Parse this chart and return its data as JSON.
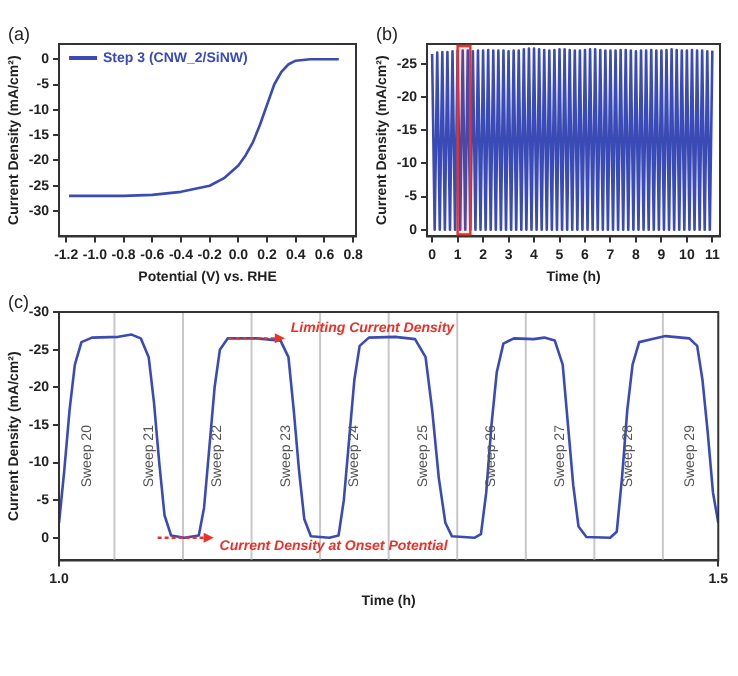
{
  "chart_data": [
    {
      "type": "line",
      "title": "(a)",
      "xlabel": "Potential (V) vs. RHE",
      "ylabel": "Current Density (mA/cm²)",
      "series": [
        {
          "name": "Step 3 (CNW_2/SiNW)",
          "color": "#3a4bb5",
          "x": [
            -1.18,
            -1.0,
            -0.8,
            -0.6,
            -0.4,
            -0.2,
            -0.1,
            0,
            0.05,
            0.1,
            0.15,
            0.2,
            0.25,
            0.3,
            0.35,
            0.4,
            0.5,
            0.6,
            0.7
          ],
          "values": [
            -27,
            -27,
            -27,
            -26.8,
            -26.2,
            -25,
            -23.5,
            -21,
            -19,
            -16.5,
            -13,
            -9,
            -5,
            -2.5,
            -1,
            -0.3,
            0,
            0,
            0
          ]
        }
      ],
      "xlim": [
        -1.25,
        0.82
      ],
      "xticks": [
        -1.2,
        {
          "value": -1,
          "label": "-1.0"
        },
        -0.8,
        -0.6,
        -0.4,
        -0.2,
        {
          "value": 0,
          "label": "0.0"
        },
        0.2,
        0.4,
        0.6,
        0.8
      ],
      "ylim": [
        -35,
        3
      ],
      "yticks": [
        0,
        -5,
        -10,
        -15,
        -20,
        -25,
        -30
      ],
      "legend": "top left",
      "marker": "none",
      "grid": false
    },
    {
      "type": "line",
      "title": "(b)",
      "xlabel": "Time (h)",
      "ylabel": "Current Density (mA/cm²)",
      "series": [
        {
          "color": "#3a4bb5",
          "x": [
            0,
            0.1,
            0.2,
            0.3,
            0.4,
            0.5,
            0.6,
            0.7,
            0.8,
            0.9,
            1,
            1.1,
            1.2,
            1.3,
            1.4,
            1.5,
            1.6,
            1.7,
            1.8,
            1.9,
            2,
            2.1,
            2.2,
            2.3,
            2.4,
            2.5,
            2.6,
            2.7,
            2.8,
            2.9,
            3,
            3.1,
            3.2,
            3.3,
            3.4,
            3.5,
            3.6,
            3.7,
            3.8,
            3.9,
            4,
            4.1,
            4.2,
            4.3,
            4.4,
            4.5,
            4.6,
            4.7,
            4.8,
            4.9,
            5,
            5.1,
            5.2,
            5.3,
            5.4,
            5.5,
            5.6,
            5.7,
            5.8,
            5.9,
            6,
            6.1,
            6.2,
            6.3,
            6.4,
            6.5,
            6.6,
            6.7,
            6.8,
            6.9,
            7,
            7.1,
            7.2,
            7.3,
            7.4,
            7.5,
            7.6,
            7.7,
            7.8,
            7.9,
            8,
            8.1,
            8.2,
            8.3,
            8.4,
            8.5,
            8.6,
            8.7,
            8.8,
            8.9,
            9,
            9.1,
            9.2,
            9.3,
            9.4,
            9.5,
            9.6,
            9.7,
            9.8,
            9.9,
            10,
            10.1,
            10.2,
            10.3,
            10.4,
            10.5,
            10.6,
            10.7,
            10.8,
            10.9,
            11
          ],
          "values": [
            -26.5,
            0,
            -26.7,
            0,
            -26.8,
            0,
            -26.8,
            0,
            -26.9,
            0,
            -27,
            0,
            -27,
            0,
            -27,
            0,
            -26.9,
            0,
            -27,
            0,
            -27,
            0,
            -27.1,
            0,
            -27,
            0,
            -27,
            0,
            -27,
            0,
            -26.9,
            0,
            -27,
            0,
            -27,
            0,
            -27.2,
            0,
            -27.3,
            0,
            -27.3,
            0,
            -27.2,
            0,
            -27.1,
            0,
            -27,
            0,
            -27.1,
            0,
            -27.2,
            0,
            -27.2,
            0,
            -27.1,
            0,
            -27,
            0,
            -27,
            0,
            -27.1,
            0,
            -27.2,
            0,
            -27.2,
            0,
            -27.1,
            0,
            -27,
            0,
            -27,
            0,
            -27,
            0,
            -27.1,
            0,
            -27.1,
            0,
            -27,
            0,
            -26.9,
            0,
            -27,
            0,
            -27,
            0,
            -27.1,
            0,
            -27,
            0,
            -27,
            0,
            -27.1,
            0,
            -27.2,
            0,
            -27.1,
            0,
            -27,
            0,
            -27,
            0,
            -27.1,
            0,
            -27,
            0,
            -27,
            0,
            -26.9,
            0,
            -27
          ]
        }
      ],
      "xlim": [
        -0.2,
        11.3
      ],
      "xticks": [
        0,
        1,
        2,
        3,
        4,
        5,
        6,
        7,
        8,
        9,
        10,
        11
      ],
      "ylim": [
        1,
        -28
      ],
      "yticks": [
        0,
        -5,
        -10,
        -15,
        -20,
        -25
      ],
      "bands": [
        {
          "axis": "x",
          "from": 1.0,
          "to": 1.5,
          "color": "#e8322b"
        }
      ],
      "marker": "none",
      "grid": false
    },
    {
      "type": "line",
      "title": "(c)",
      "xlabel": "Time (h)",
      "ylabel": "Current Density (mA/cm²)",
      "series": [
        {
          "color": "#3a4bb5",
          "x": [
            1.0,
            1.004,
            1.008,
            1.012,
            1.017,
            1.025,
            1.045,
            1.055,
            1.062,
            1.068,
            1.072,
            1.076,
            1.08,
            1.085,
            1.095,
            1.106,
            1.11,
            1.114,
            1.118,
            1.122,
            1.128,
            1.15,
            1.168,
            1.174,
            1.178,
            1.182,
            1.186,
            1.191,
            1.205,
            1.212,
            1.216,
            1.22,
            1.224,
            1.228,
            1.235,
            1.255,
            1.27,
            1.278,
            1.283,
            1.288,
            1.293,
            1.298,
            1.315,
            1.32,
            1.324,
            1.328,
            1.332,
            1.337,
            1.345,
            1.36,
            1.368,
            1.376,
            1.382,
            1.386,
            1.39,
            1.394,
            1.4,
            1.418,
            1.423,
            1.427,
            1.431,
            1.435,
            1.44,
            1.45,
            1.46,
            1.478,
            1.484,
            1.488,
            1.492,
            1.496,
            1.5
          ],
          "values": [
            -2,
            -9,
            -17,
            -23,
            -26,
            -26.6,
            -26.7,
            -27,
            -26.5,
            -24,
            -18,
            -10,
            -3,
            -0.3,
            0,
            -0.3,
            -4,
            -12,
            -20,
            -25,
            -26.5,
            -26.5,
            -26.2,
            -24,
            -17,
            -9,
            -2.5,
            -0.2,
            0,
            -0.3,
            -5,
            -13,
            -21,
            -25.5,
            -26.6,
            -26.7,
            -26.4,
            -24,
            -17,
            -8,
            -2,
            -0.2,
            0,
            -0.5,
            -6,
            -15,
            -22,
            -25.8,
            -26.5,
            -26.4,
            -26.6,
            -26.2,
            -23,
            -15,
            -7,
            -1.5,
            -0.1,
            0,
            -0.8,
            -8,
            -17,
            -23,
            -26,
            -26.4,
            -26.8,
            -26.5,
            -25.5,
            -21,
            -14,
            -6,
            -2
          ]
        }
      ],
      "xlim": [
        1.0,
        1.5
      ],
      "xticks": [
        {
          "value": 1,
          "label": "1.0"
        },
        {
          "value": 1.5,
          "label": "1.5"
        }
      ],
      "ylim": [
        3,
        -30
      ],
      "yticks": [
        0,
        -5,
        -10,
        -15,
        -20,
        -25,
        -30
      ],
      "ref_lines": [
        {
          "axis": "x",
          "value": 1.042,
          "color": "#c8c8c8"
        },
        {
          "axis": "x",
          "value": 1.094,
          "color": "#c8c8c8"
        },
        {
          "axis": "x",
          "value": 1.146,
          "color": "#c8c8c8"
        },
        {
          "axis": "x",
          "value": 1.198,
          "color": "#c8c8c8"
        },
        {
          "axis": "x",
          "value": 1.25,
          "color": "#c8c8c8"
        },
        {
          "axis": "x",
          "value": 1.302,
          "color": "#c8c8c8"
        },
        {
          "axis": "x",
          "value": 1.354,
          "color": "#c8c8c8"
        },
        {
          "axis": "x",
          "value": 1.406,
          "color": "#c8c8c8"
        },
        {
          "axis": "x",
          "value": 1.458,
          "color": "#c8c8c8"
        }
      ],
      "annotations": [
        "Sweep 20",
        "Sweep 21",
        "Sweep 22",
        "Sweep 23",
        "Sweep 24",
        "Sweep 25",
        "Sweep 26",
        "Sweep 27",
        "Sweep 28",
        "Sweep 29",
        {
          "text": "Limiting Current Density",
          "x": 1.15,
          "y": -26.5
        },
        {
          "text": "Current Density at Onset Potential",
          "x": 1.096,
          "y": 0
        }
      ],
      "marker": "none",
      "grid": false
    }
  ]
}
